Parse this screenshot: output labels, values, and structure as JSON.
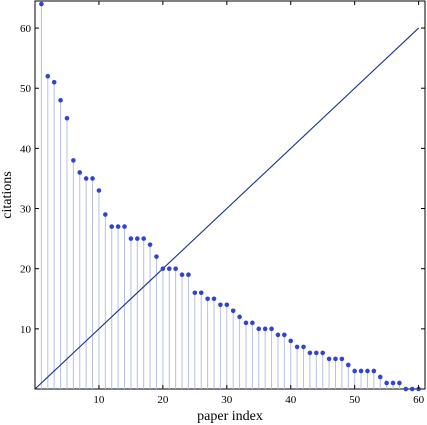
{
  "chart_data": {
    "type": "scatter",
    "title": "",
    "xlabel": "paper index",
    "ylabel": "citations",
    "xlim": [
      0,
      61
    ],
    "ylim": [
      0,
      64.5
    ],
    "x_ticks": [
      10,
      20,
      30,
      40,
      50,
      60
    ],
    "y_ticks": [
      10,
      20,
      30,
      40,
      50,
      60
    ],
    "grid": false,
    "series": [
      {
        "style": "stem-points",
        "color": "#3344cc",
        "stem_color": "#b8c0e0",
        "x": [
          1,
          2,
          3,
          4,
          5,
          6,
          7,
          8,
          9,
          10,
          11,
          12,
          13,
          14,
          15,
          16,
          17,
          18,
          19,
          20,
          21,
          22,
          23,
          24,
          25,
          26,
          27,
          28,
          29,
          30,
          31,
          32,
          33,
          34,
          35,
          36,
          37,
          38,
          39,
          40,
          41,
          42,
          43,
          44,
          45,
          46,
          47,
          48,
          49,
          50,
          51,
          52,
          53,
          54,
          55,
          56,
          57,
          58,
          59,
          60
        ],
        "y": [
          64,
          52,
          51,
          48,
          45,
          38,
          36,
          35,
          35,
          33,
          29,
          27,
          27,
          27,
          25,
          25,
          25,
          24,
          22,
          20,
          20,
          20,
          19,
          19,
          16,
          16,
          15,
          15,
          14,
          14,
          13,
          12,
          11,
          11,
          10,
          10,
          10,
          9,
          9,
          8,
          7,
          7,
          6,
          6,
          6,
          5,
          5,
          5,
          4,
          3,
          3,
          3,
          3,
          2,
          1,
          1,
          1,
          0,
          0,
          0
        ]
      },
      {
        "style": "line",
        "color": "#1a2f8a",
        "x": [
          0,
          60
        ],
        "y": [
          0,
          60
        ]
      }
    ]
  }
}
